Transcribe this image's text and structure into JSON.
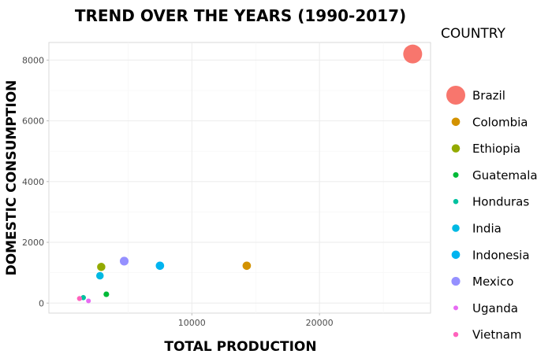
{
  "chart_data": {
    "type": "scatter",
    "title": "TREND OVER THE YEARS (1990-2017)",
    "xlabel": "TOTAL PRODUCTION",
    "ylabel": "DOMESTIC CONSUMPTION",
    "xlim": [
      -1200,
      28700
    ],
    "ylim": [
      -330,
      8580
    ],
    "xticks": [
      10000,
      20000
    ],
    "yticks": [
      0,
      2000,
      4000,
      6000,
      8000
    ],
    "grid": true,
    "legend": {
      "title": "COUNTRY",
      "placement": "right"
    },
    "series": [
      {
        "name": "Brazil",
        "color": "#F8766D",
        "x": 27300,
        "y": 8200,
        "size": 8200
      },
      {
        "name": "Colombia",
        "color": "#D39200",
        "x": 14300,
        "y": 1230,
        "size": 1230
      },
      {
        "name": "Ethiopia",
        "color": "#93AA00",
        "x": 2900,
        "y": 1190,
        "size": 1190
      },
      {
        "name": "Guatemala",
        "color": "#00BA38",
        "x": 3300,
        "y": 290,
        "size": 290
      },
      {
        "name": "Honduras",
        "color": "#00C19F",
        "x": 1500,
        "y": 180,
        "size": 180
      },
      {
        "name": "India",
        "color": "#00B9E3",
        "x": 2800,
        "y": 900,
        "size": 900
      },
      {
        "name": "Indonesia",
        "color": "#00B4F0",
        "x": 7500,
        "y": 1230,
        "size": 1230
      },
      {
        "name": "Mexico",
        "color": "#9590FF",
        "x": 4700,
        "y": 1380,
        "size": 1380
      },
      {
        "name": "Uganda",
        "color": "#E76BF3",
        "x": 1900,
        "y": 70,
        "size": 70
      },
      {
        "name": "Vietnam",
        "color": "#FF62BC",
        "x": 1200,
        "y": 150,
        "size": 150
      }
    ]
  }
}
